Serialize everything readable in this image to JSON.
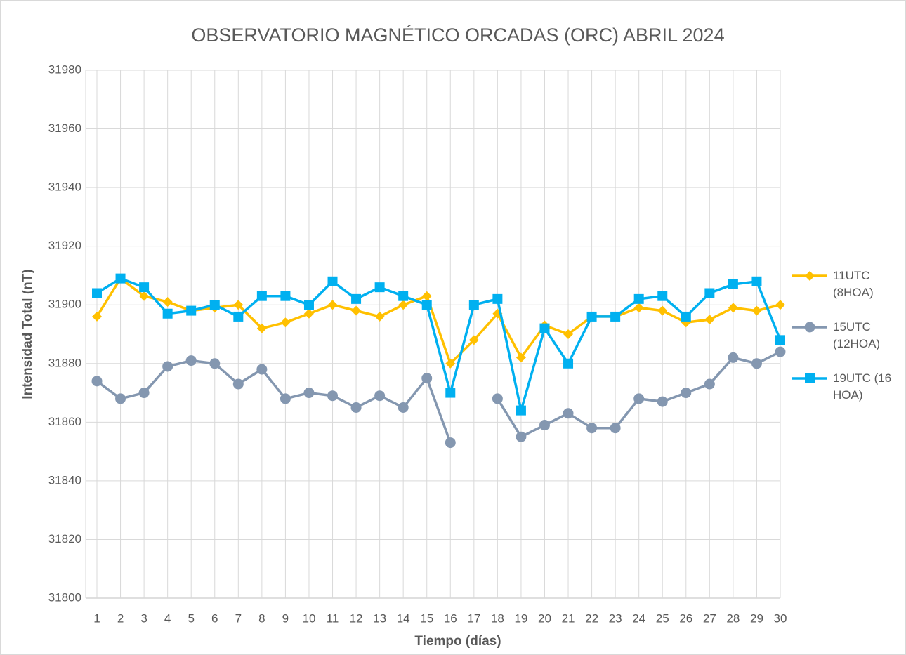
{
  "chart_data": {
    "type": "line",
    "title": "OBSERVATORIO MAGNÉTICO ORCADAS (ORC) ABRIL 2024",
    "x_label": "Tiempo (días)",
    "y_label": "Intensidad Total (nT)",
    "categories": [
      "1",
      "2",
      "3",
      "4",
      "5",
      "6",
      "7",
      "8",
      "9",
      "10",
      "11",
      "12",
      "13",
      "14",
      "15",
      "16",
      "17",
      "18",
      "19",
      "20",
      "21",
      "22",
      "23",
      "24",
      "25",
      "26",
      "27",
      "28",
      "29",
      "30"
    ],
    "ylim": [
      31800,
      31980
    ],
    "yticks": [
      31800,
      31820,
      31840,
      31860,
      31880,
      31900,
      31920,
      31940,
      31960,
      31980
    ],
    "grid": true,
    "legend": "right",
    "series": [
      {
        "name": "11UTC (8HOA)",
        "color": "#FFC000",
        "marker": "diamond",
        "values": [
          31896,
          31909,
          31903,
          31901,
          31898,
          31899,
          31900,
          31892,
          31894,
          31897,
          31900,
          31898,
          31896,
          31900,
          31903,
          31880,
          31888,
          31897,
          31882,
          31893,
          31890,
          31896,
          31896,
          31899,
          31898,
          31894,
          31895,
          31899,
          31898,
          31900
        ]
      },
      {
        "name": "15UTC (12HOA)",
        "color": "#8497B0",
        "marker": "circle",
        "values": [
          31874,
          31868,
          31870,
          31879,
          31881,
          31880,
          31873,
          31878,
          31868,
          31870,
          31869,
          31865,
          31869,
          31865,
          31875,
          31853,
          null,
          31868,
          31855,
          31859,
          31863,
          31858,
          31858,
          31868,
          31867,
          31870,
          31873,
          31882,
          31880,
          31884
        ]
      },
      {
        "name": "19UTC (16 HOA)",
        "color": "#00B0F0",
        "marker": "square",
        "values": [
          31904,
          31909,
          31906,
          31897,
          31898,
          31900,
          31896,
          31903,
          31903,
          31900,
          31908,
          31902,
          31906,
          31903,
          31900,
          31870,
          31900,
          31902,
          31864,
          31892,
          31880,
          31896,
          31896,
          31902,
          31903,
          31896,
          31904,
          31907,
          31908,
          31888
        ]
      }
    ]
  }
}
